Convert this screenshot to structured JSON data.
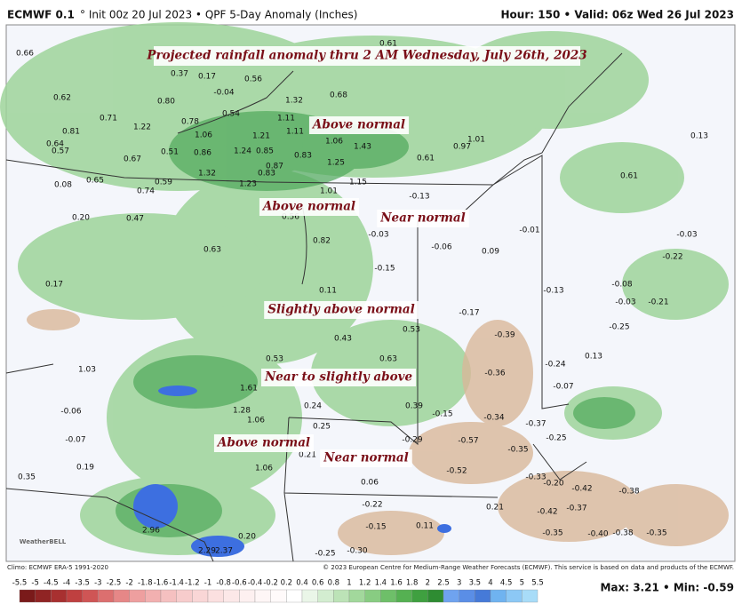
{
  "header": {
    "model": "ECMWF 0.1",
    "details": "° Init 00z 20 Jul 2023 • QPF 5-Day Anomaly (Inches)",
    "valid": "Hour: 150 • Valid: 06z Wed 26 Jul 2023"
  },
  "title": "Projected rainfall anomaly thru 2 AM Wednesday, July 26th, 2023",
  "annotations": [
    "Above normal",
    "Above normal",
    "Near normal",
    "Slightly above normal",
    "Near to slightly above",
    "Above normal",
    "Near normal"
  ],
  "map_values": [
    "0.66",
    "0.37",
    "0.17",
    "-0.04",
    "0.56",
    "0.62",
    "0.80",
    "0.71",
    "0.54",
    "1.32",
    "0.68",
    "1.22",
    "0.78",
    "0.81",
    "1.06",
    "1.11",
    "1.11",
    "1.21",
    "0.64",
    "0.57",
    "0.51",
    "0.86",
    "1.24",
    "0.85",
    "0.83",
    "1.06",
    "1.43",
    "0.67",
    "0.87",
    "1.25",
    "0.61",
    "0.97",
    "1.01",
    "0.13",
    "1.32",
    "0.83",
    "0.08",
    "0.65",
    "0.59",
    "0.74",
    "1.23",
    "1.15",
    "1.01",
    "0.61",
    "-0.13",
    "0.20",
    "0.47",
    "0.56",
    "-0.03",
    "-0.06",
    "0.82",
    "-0.01",
    "-0.03",
    "0.63",
    "0.09",
    "-0.22",
    "-0.15",
    "0.17",
    "-0.08",
    "0.11",
    "-0.13",
    "-0.03",
    "-0.21",
    "-0.17",
    "0.53",
    "-0.39",
    "-0.25",
    "0.43",
    "1.03",
    "0.53",
    "0.63",
    "0.13",
    "-0.24",
    "-0.36",
    "-0.07",
    "1.61",
    "-0.06",
    "0.24",
    "1.28",
    "0.39",
    "-0.15",
    "-0.34",
    "1.06",
    "-0.37",
    "0.25",
    "-0.07",
    "-0.29",
    "-0.57",
    "-0.25",
    "0.21",
    "-0.35",
    "0.19",
    "1.06",
    "-0.52",
    "0.35",
    "-0.33",
    "0.06",
    "-0.20",
    "-0.42",
    "-0.38",
    "-0.22",
    "-0.37",
    "-0.42",
    "0.21",
    "-0.15",
    "0.11",
    "-0.40",
    "-0.35",
    "-0.35",
    "-0.38",
    "2.96",
    "0.20",
    "2.29",
    "2.37",
    "-0.25",
    "-0.30",
    "0.61"
  ],
  "legend": {
    "labels": [
      "-5.5",
      "-5",
      "-4.5",
      "-4",
      "-3.5",
      "-3",
      "-2.5",
      "-2",
      "-1.8",
      "-1.6",
      "-1.4",
      "-1.2",
      "-1",
      "-0.8",
      "-0.6",
      "-0.4",
      "-0.2",
      "0.2",
      "0.4",
      "0.6",
      "0.8",
      "1",
      "1.2",
      "1.4",
      "1.6",
      "1.8",
      "2",
      "2.5",
      "3",
      "3.5",
      "4",
      "4.5",
      "5",
      "5.5"
    ]
  },
  "logo": "WeatherBELL",
  "footer": {
    "climo": "Climo: ECMWF ERA-5 1991-2020",
    "copyright": "© 2023 European Centre for Medium-Range Weather Forecasts (ECMWF). This service is based on data and products of the ECMWF.",
    "stats": "Max: 3.21 • Min: -0.59"
  }
}
